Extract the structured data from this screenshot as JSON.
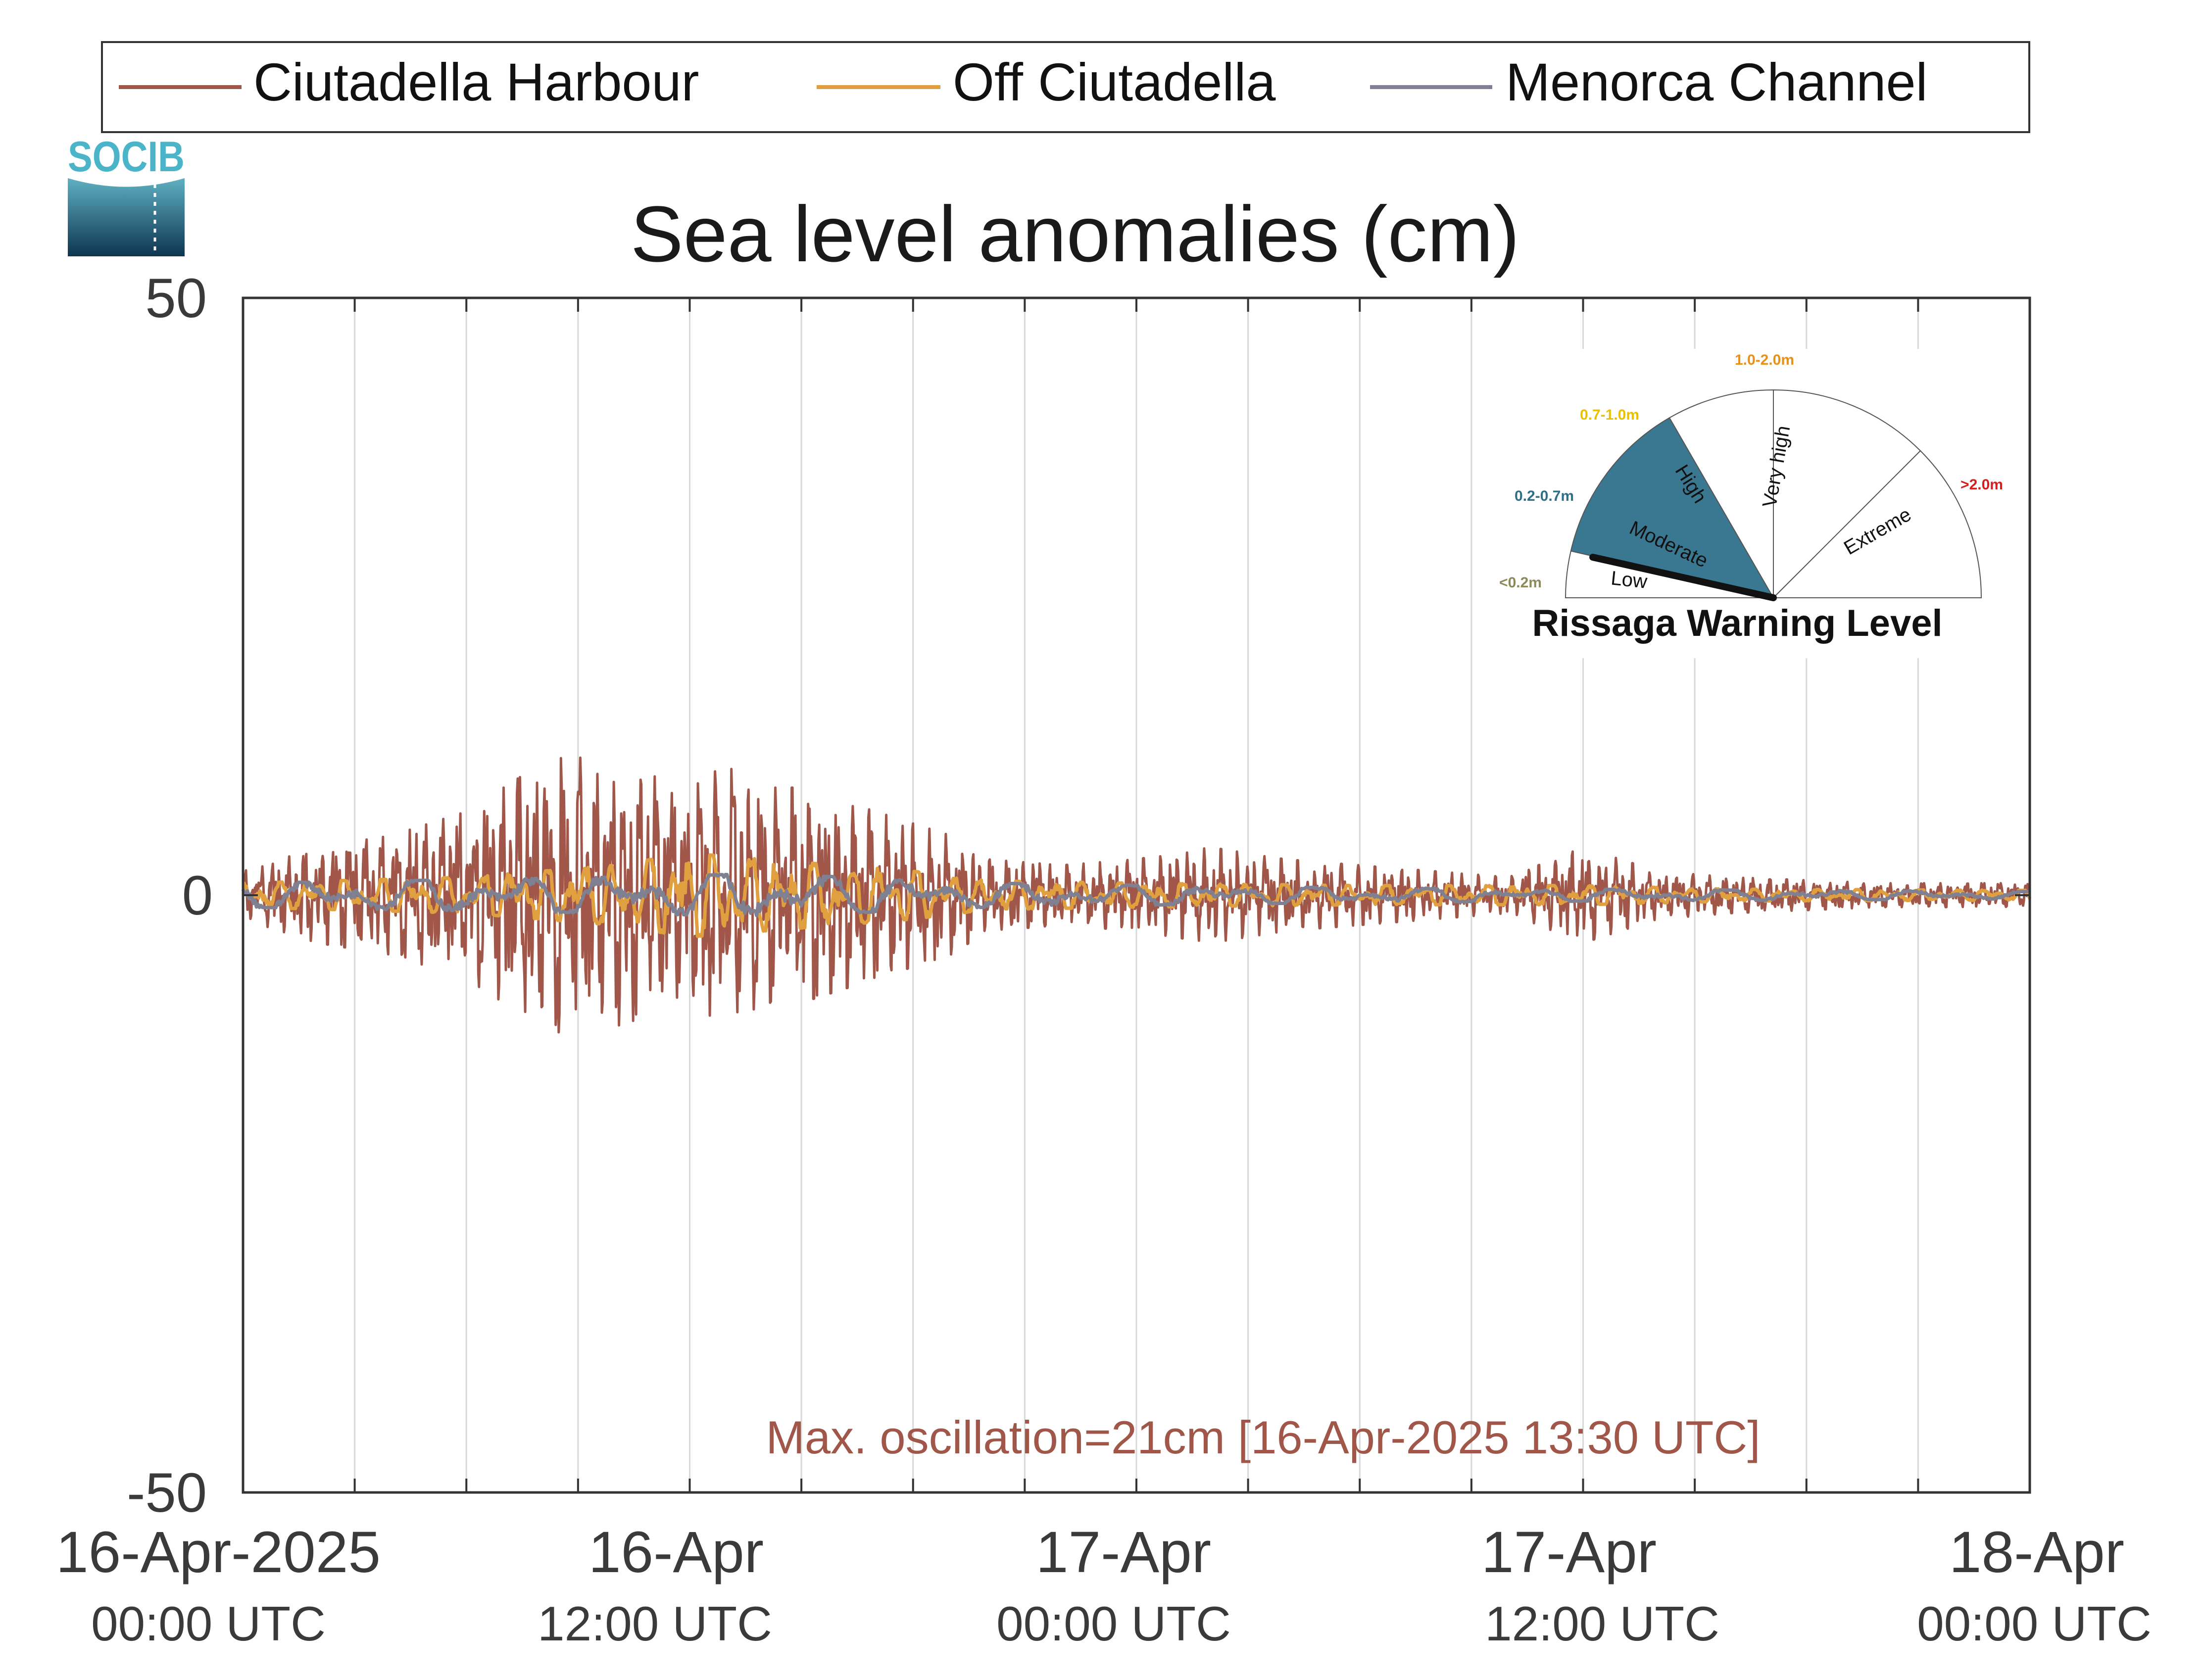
{
  "logo": {
    "text": "SOCIB"
  },
  "legend": {
    "position": "top",
    "items": [
      {
        "label": "Ciutadella Harbour",
        "color": "#A0574A"
      },
      {
        "label": "Off Ciutadella",
        "color": "#E0A040"
      },
      {
        "label": "Menorca Channel",
        "color": "#7F8091"
      }
    ]
  },
  "chart_data": {
    "type": "line",
    "title": "Sea level anomalies (cm)",
    "xlabel": "",
    "ylabel": "",
    "ylim": [
      -50,
      50
    ],
    "yticks": [
      "50",
      "0",
      "-50"
    ],
    "xlim_hours": [
      0,
      48
    ],
    "xticks": [
      {
        "hour": 0,
        "date": "16-Apr-2025",
        "time": "00:00 UTC"
      },
      {
        "hour": 12,
        "date": "16-Apr",
        "time": "12:00 UTC"
      },
      {
        "hour": 24,
        "date": "17-Apr",
        "time": "00:00 UTC"
      },
      {
        "hour": 36,
        "date": "17-Apr",
        "time": "12:00 UTC"
      },
      {
        "hour": 48,
        "date": "18-Apr",
        "time": "00:00 UTC"
      }
    ],
    "grid": "vertical every 3 hours",
    "series": [
      {
        "name": "Ciutadella Harbour",
        "color": "#A0574A",
        "envelope_hours": [
          0,
          2,
          4,
          6,
          8,
          9,
          10,
          11,
          12,
          13,
          14,
          15,
          16,
          17,
          18,
          19,
          20,
          22,
          24,
          26,
          28,
          30,
          32,
          34,
          36,
          38,
          40,
          44,
          48
        ],
        "envelope_cm": [
          2,
          4,
          5,
          7,
          11,
          12,
          11,
          10,
          9,
          11,
          9,
          9,
          8,
          7,
          6,
          5,
          3,
          2.5,
          3,
          4,
          3,
          2.5,
          2,
          1.5,
          4,
          2,
          1.5,
          1,
          1
        ]
      },
      {
        "name": "Off Ciutadella",
        "color": "#E0A040",
        "envelope_hours": [
          0,
          6,
          10,
          12,
          14,
          16,
          18,
          20,
          24,
          30,
          36,
          40,
          48
        ],
        "envelope_cm": [
          1,
          1.5,
          2.5,
          3.5,
          3,
          2.5,
          2,
          1.2,
          1,
          0.8,
          0.8,
          0.5,
          0.4
        ]
      },
      {
        "name": "Menorca Channel",
        "color": "#7F8091",
        "envelope_hours": [
          0,
          10,
          14,
          20,
          30,
          48
        ],
        "envelope_cm": [
          1,
          1.5,
          1.8,
          1,
          0.6,
          0.3
        ]
      }
    ],
    "annotation": {
      "text": "Max. oscillation=21cm [16-Apr-2025 13:30 UTC]",
      "color": "#A0574A"
    }
  },
  "gauge": {
    "title": "Rissaga Warning Level",
    "current_level": "Low",
    "sectors": [
      {
        "name": "Low",
        "range": "<0.2m",
        "range_color": "#8A8A5A"
      },
      {
        "name": "Moderate",
        "range": "0.2-0.7m",
        "range_color": "#2E6E86"
      },
      {
        "name": "High",
        "range": "0.7-1.0m",
        "range_color": "#E8C200"
      },
      {
        "name": "Very high",
        "range": "1.0-2.0m",
        "range_color": "#E8901A"
      },
      {
        "name": "Extreme",
        "range": ">2.0m",
        "range_color": "#D21F1F"
      }
    ],
    "colors": {
      "highlight": "#3A7891",
      "needle": "#111111"
    }
  }
}
